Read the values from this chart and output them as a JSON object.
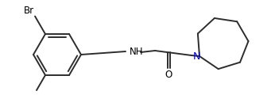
{
  "line_color": "#2d2d2d",
  "text_color": "#000000",
  "n_color": "#0000cc",
  "background": "#ffffff",
  "line_width": 1.4,
  "font_size": 8.5,
  "br_label": "Br",
  "nh_label": "NH",
  "n_label": "N",
  "o_label": "O"
}
